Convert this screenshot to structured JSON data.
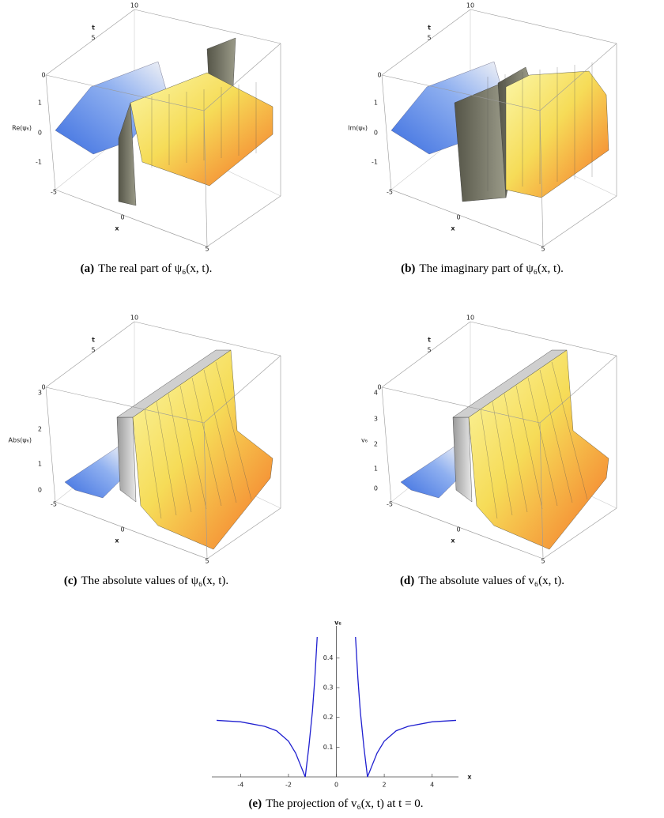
{
  "figures": [
    {
      "t_label": "t",
      "t_ticks": [
        0,
        5,
        10
      ],
      "z_label": "Re(ψ₆)",
      "z_ticks": [
        1,
        0,
        -1
      ],
      "x_label": "x",
      "x_ticks": [
        -5,
        0,
        5
      ],
      "caption_label": "(a)",
      "caption": "The real part of ψ₆(x, t)."
    },
    {
      "t_label": "t",
      "t_ticks": [
        0,
        5,
        10
      ],
      "z_label": "Im(ψ₆)",
      "z_ticks": [
        1,
        0,
        -1
      ],
      "x_label": "x",
      "x_ticks": [
        -5,
        0,
        5
      ],
      "caption_label": "(b)",
      "caption": "The imaginary part of ψ₆(x, t)."
    },
    {
      "t_label": "t",
      "t_ticks": [
        0,
        5,
        10
      ],
      "z_label": "Abs(ψ₆)",
      "z_ticks": [
        3,
        2,
        1,
        0
      ],
      "x_label": "x",
      "x_ticks": [
        -5,
        0,
        5
      ],
      "caption_label": "(c)",
      "caption": "The absolute values of ψ₆(x, t)."
    },
    {
      "t_label": "t",
      "t_ticks": [
        0,
        5,
        10
      ],
      "z_label": "v₆",
      "z_ticks": [
        4,
        3,
        2,
        1,
        0
      ],
      "x_label": "x",
      "x_ticks": [
        -5,
        0,
        5
      ],
      "caption_label": "(d)",
      "caption": "The absolute values of v₆(x, t)."
    }
  ],
  "chart_data": {
    "type": "line",
    "x_label": "x",
    "y_label": "v₆",
    "caption_label": "(e)",
    "caption": "The projection of v₆(x, t) at t = 0.",
    "x": [
      -5,
      -4,
      -3,
      -2.5,
      -2,
      -1.7,
      -1.5,
      -1.3,
      -1.15,
      -1,
      -0.9,
      -0.8,
      0,
      0.8,
      0.9,
      1,
      1.15,
      1.3,
      1.5,
      1.7,
      2,
      2.5,
      3,
      4,
      5
    ],
    "series": [
      {
        "color": "#2020d0",
        "values": [
          0.19,
          0.185,
          0.17,
          0.155,
          0.12,
          0.08,
          0.04,
          0,
          0.1,
          0.22,
          0.33,
          0.47,
          null,
          0.47,
          0.33,
          0.22,
          0.1,
          0,
          0.04,
          0.08,
          0.12,
          0.155,
          0.17,
          0.185,
          0.19
        ]
      }
    ],
    "xlim": [
      -5.2,
      5.1
    ],
    "ylim": [
      0,
      0.47
    ],
    "xticks": [
      -4,
      -2,
      0,
      2,
      4
    ],
    "yticks": [
      0.1,
      0.2,
      0.3,
      0.4
    ]
  }
}
